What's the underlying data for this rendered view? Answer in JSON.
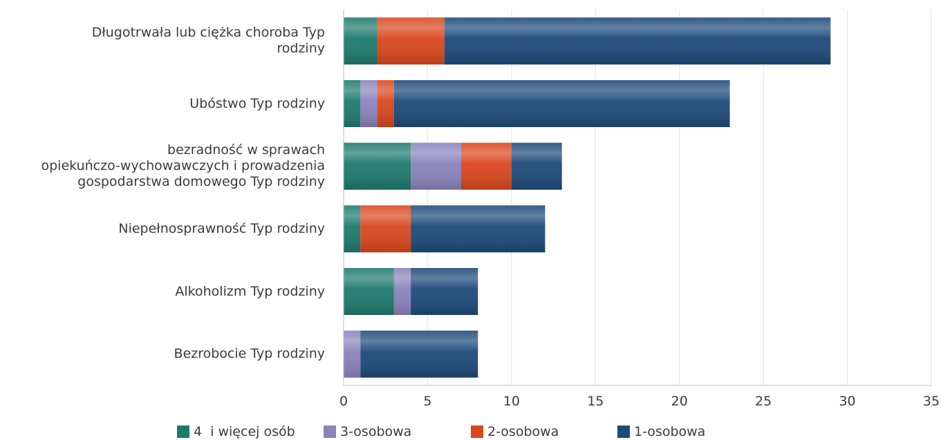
{
  "chart_data": {
    "type": "bar",
    "orientation": "horizontal",
    "stacked": true,
    "categories": [
      "Długotrwała lub ciężka choroba Typ rodziny",
      "Ubóstwo Typ rodziny",
      "bezradność w sprawach opiekuńczo-wychowawczych i prowadzenia gospodarstwa domowego Typ rodziny",
      "Niepełnosprawność Typ rodziny",
      "Alkoholizm Typ rodziny",
      "Bezrobocie Typ rodziny"
    ],
    "category_lines": [
      [
        "Długotrwała lub ciężka choroba Typ",
        "rodziny"
      ],
      [
        "Ubóstwo Typ rodziny"
      ],
      [
        "bezradność w sprawach",
        "opiekuńczo-wychowawczych i prowadzenia",
        "gospodarstwa domowego Typ rodziny"
      ],
      [
        "Niepełnosprawność Typ rodziny"
      ],
      [
        "Alkoholizm Typ rodziny"
      ],
      [
        "Bezrobocie Typ rodziny"
      ]
    ],
    "series": [
      {
        "name": "4  i więcej osób",
        "color": "#1f7a6e",
        "values": [
          2,
          1,
          4,
          1,
          3,
          0
        ]
      },
      {
        "name": "3-osobowa",
        "color": "#8a83bd",
        "values": [
          0,
          1,
          3,
          0,
          1,
          1
        ]
      },
      {
        "name": "2-osobowa",
        "color": "#d9471e",
        "values": [
          4,
          1,
          3,
          3,
          0,
          0
        ]
      },
      {
        "name": "1-osobowa",
        "color": "#1e4a7a",
        "values": [
          23,
          20,
          3,
          8,
          4,
          7
        ]
      }
    ],
    "xlim": [
      0,
      35
    ],
    "xticks": [
      0,
      5,
      10,
      15,
      20,
      25,
      30,
      35
    ],
    "grid": true,
    "legend_position": "bottom"
  }
}
